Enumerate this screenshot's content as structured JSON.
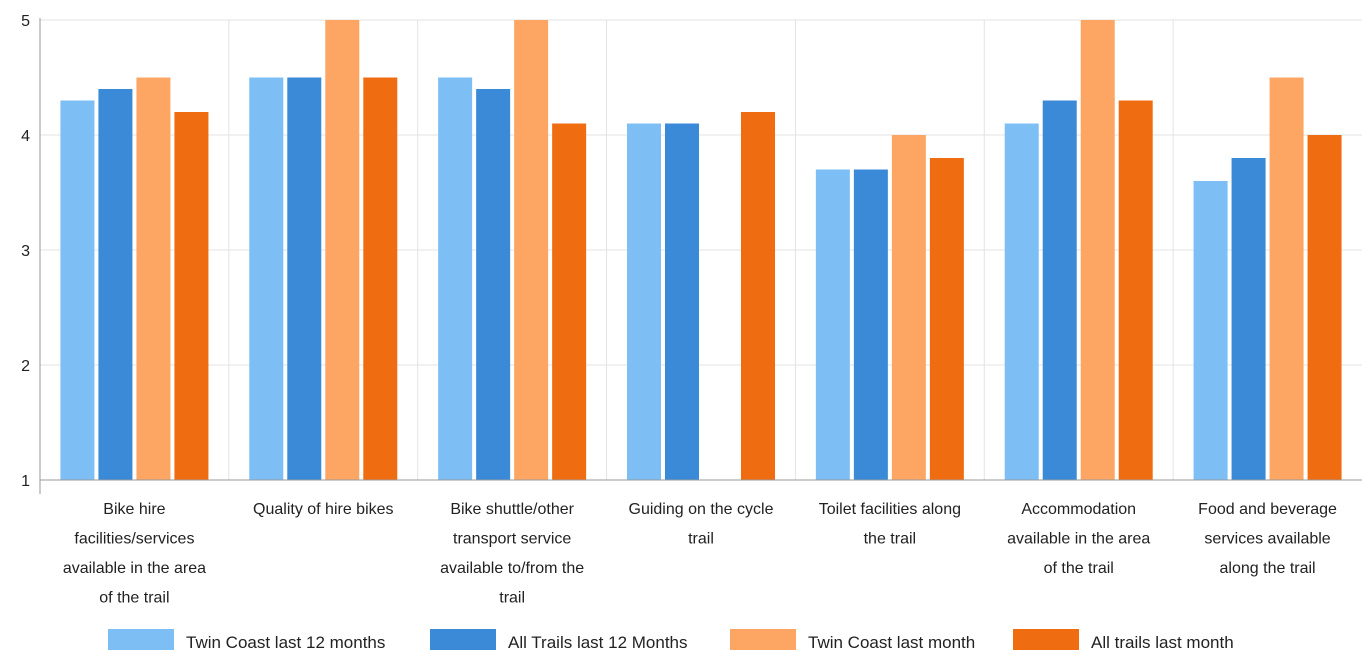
{
  "chart_data": {
    "type": "bar",
    "title": "",
    "xlabel": "",
    "ylabel": "",
    "ylim": [
      1,
      5
    ],
    "yticks": [
      1,
      2,
      3,
      4,
      5
    ],
    "grid": true,
    "legend_position": "bottom",
    "categories": [
      [
        "Bike hire",
        "facilities/services",
        "available in the area",
        "of the trail"
      ],
      [
        "Quality of hire bikes"
      ],
      [
        "Bike shuttle/other",
        "transport service",
        "available to/from the",
        "trail"
      ],
      [
        "Guiding on the cycle",
        "trail"
      ],
      [
        "Toilet facilities along",
        "the trail"
      ],
      [
        "Accommodation",
        "available in the area",
        "of the trail"
      ],
      [
        "Food and beverage",
        "services available",
        "along the trail"
      ]
    ],
    "series": [
      {
        "name": "Twin Coast last 12 months",
        "color": "#7dbff5",
        "values": [
          4.3,
          4.5,
          4.5,
          4.1,
          3.7,
          4.1,
          3.6
        ]
      },
      {
        "name": "All Trails last 12 Months",
        "color": "#3a8ad8",
        "values": [
          4.4,
          4.5,
          4.4,
          4.1,
          3.7,
          4.3,
          3.8
        ]
      },
      {
        "name": "Twin Coast last month",
        "color": "#fda664",
        "values": [
          4.5,
          5.0,
          5.0,
          null,
          4.0,
          5.0,
          4.5
        ]
      },
      {
        "name": "All trails last month",
        "color": "#f06c10",
        "values": [
          4.2,
          4.5,
          4.1,
          4.2,
          3.8,
          4.3,
          4.0
        ]
      }
    ]
  }
}
